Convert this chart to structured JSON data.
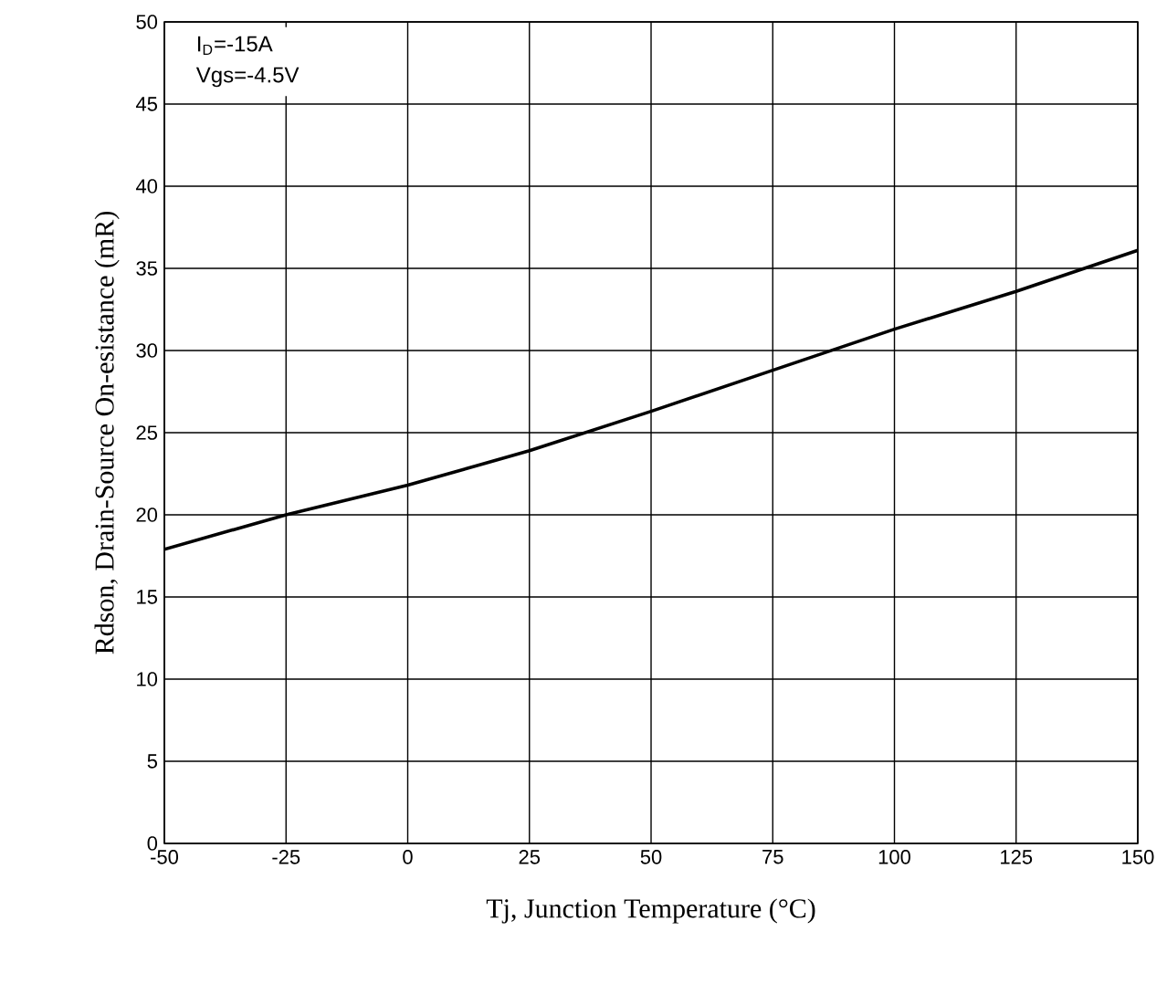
{
  "chart_data": {
    "type": "line",
    "xlabel": "Tj, Junction Temperature (°C)",
    "ylabel": "Rdson, Drain-Source On-esistance (mR)",
    "x": [
      -50,
      -25,
      0,
      25,
      50,
      75,
      100,
      125,
      150
    ],
    "series": [
      {
        "color": "#000000",
        "values": [
          17.9,
          20.0,
          21.8,
          23.9,
          26.3,
          28.8,
          31.3,
          33.6,
          36.1
        ]
      }
    ],
    "xlim": [
      -50,
      150
    ],
    "xticks": [
      -50,
      -25,
      0,
      25,
      50,
      75,
      100,
      125,
      150
    ],
    "ylim": [
      0,
      50
    ],
    "yticks": [
      0,
      5,
      10,
      15,
      20,
      25,
      30,
      35,
      40,
      45,
      50
    ],
    "grid": true,
    "annotations": [
      "I$_{D}$=-15A",
      "Vgs=-4.5V"
    ]
  }
}
